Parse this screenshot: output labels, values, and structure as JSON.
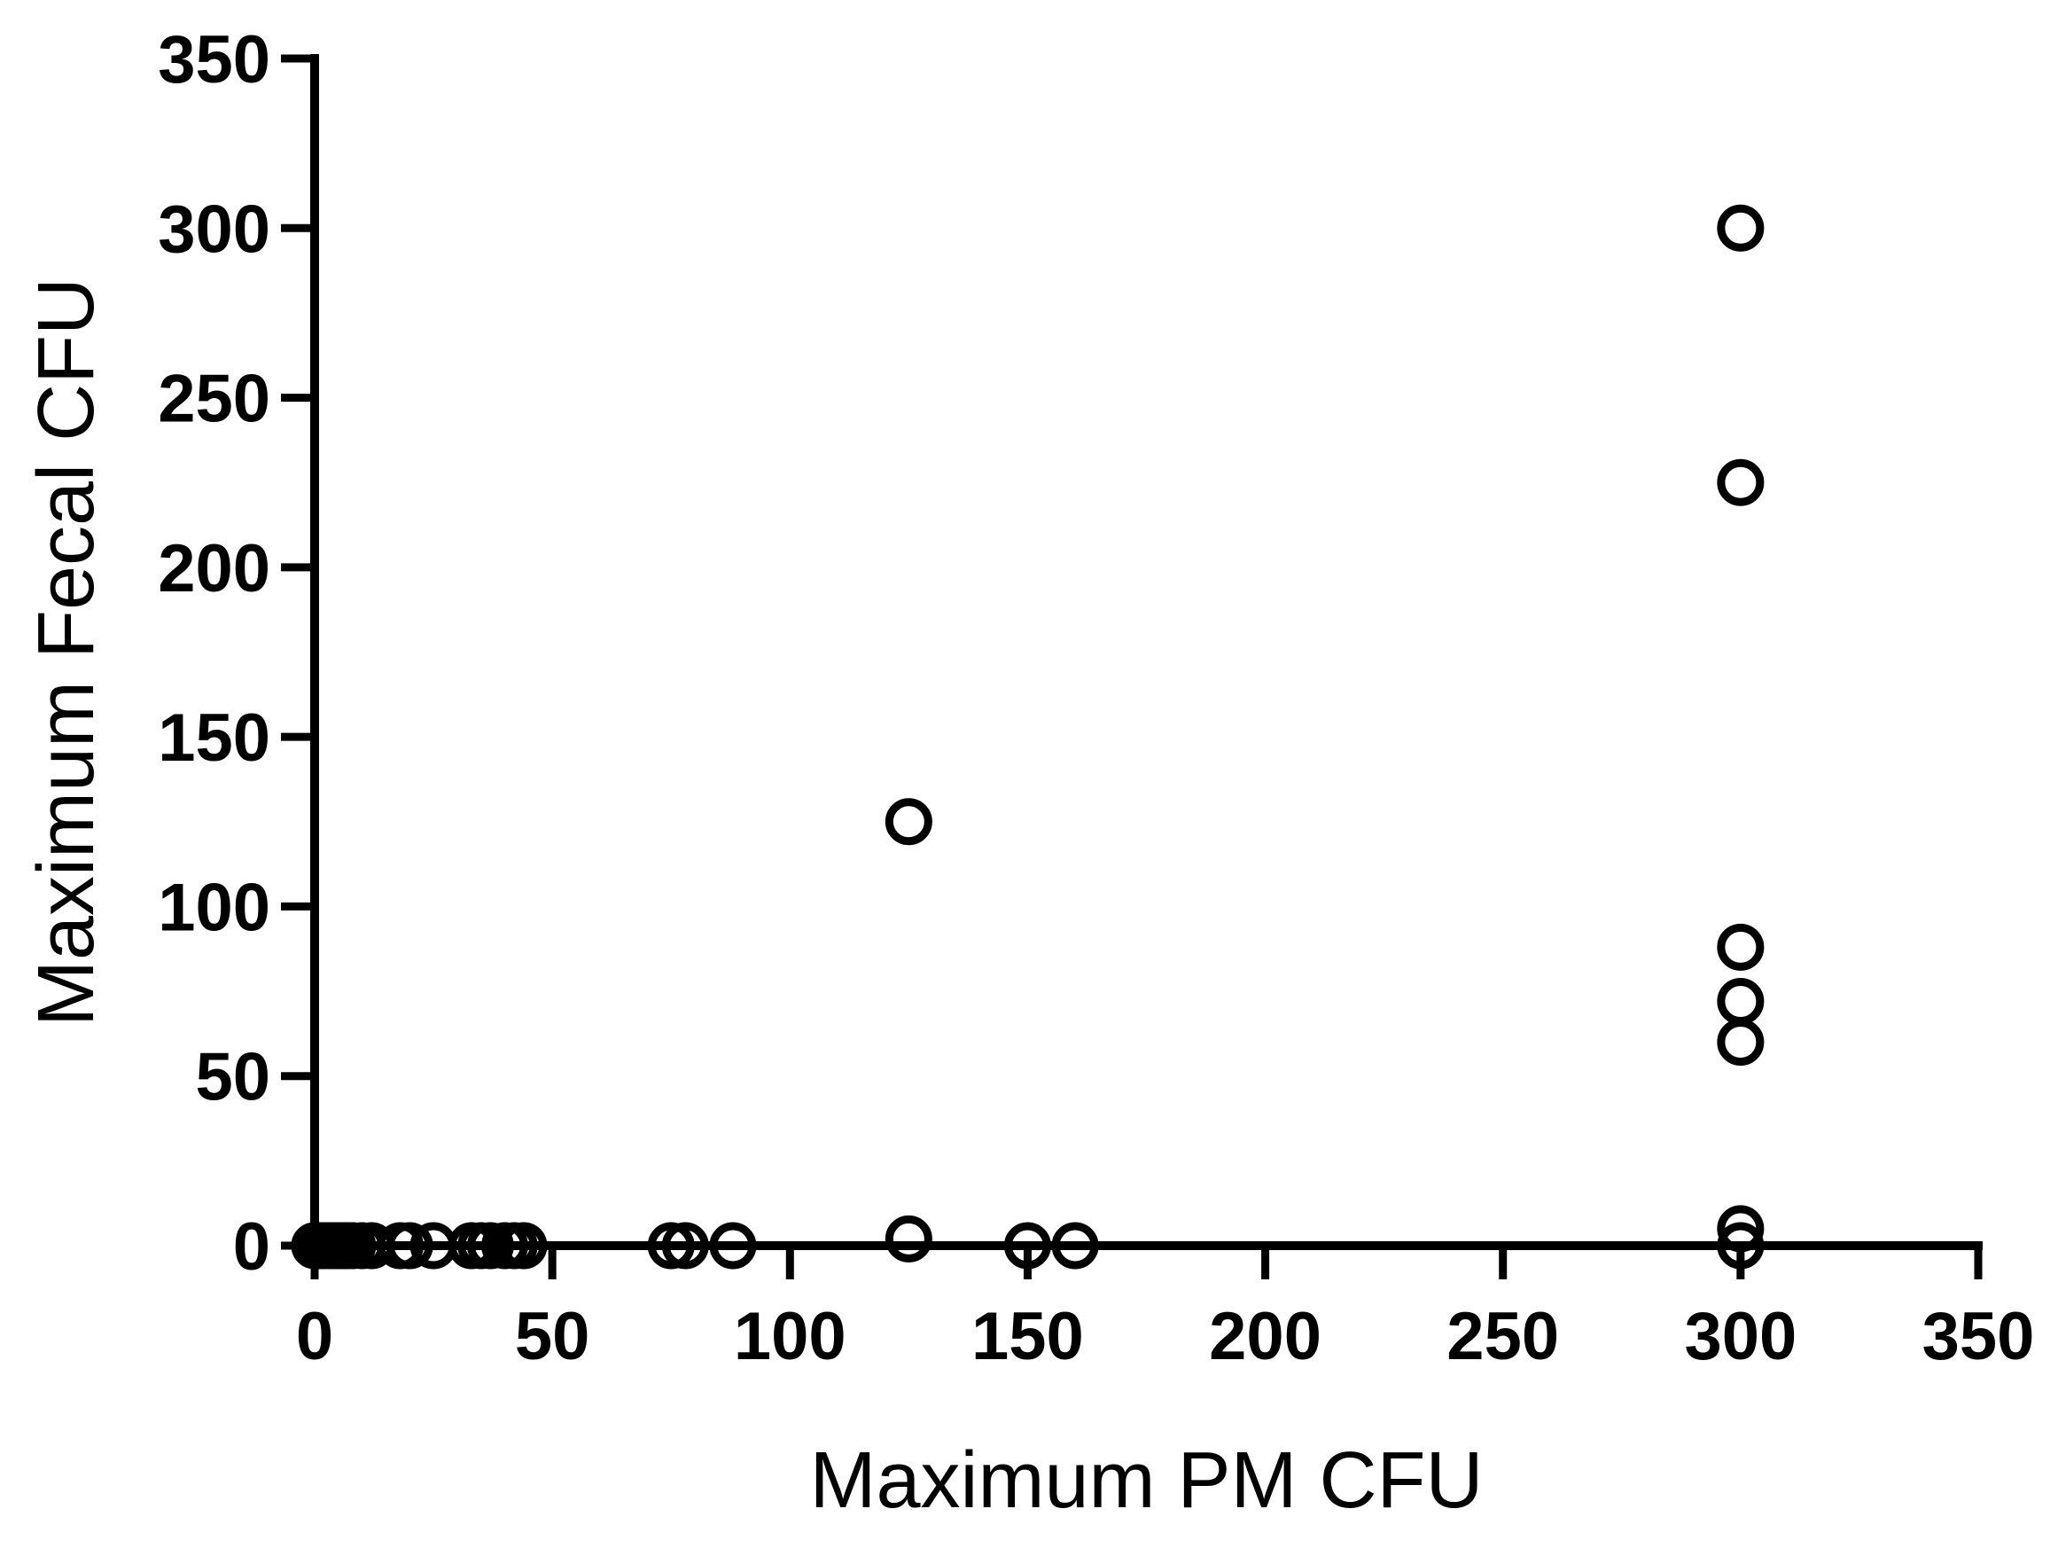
{
  "chart_data": {
    "type": "scatter",
    "title": "",
    "xlabel": "Maximum PM CFU",
    "ylabel": "Maximum Fecal CFU",
    "xlim": [
      0,
      350
    ],
    "ylim": [
      0,
      350
    ],
    "xticks": [
      "0",
      "50",
      "100",
      "150",
      "200",
      "250",
      "300",
      "350"
    ],
    "yticks": [
      "0",
      "50",
      "100",
      "150",
      "200",
      "250",
      "300",
      "350"
    ],
    "grid": false,
    "legend": "none",
    "marker": "open-circle",
    "color": "#000000",
    "series": [
      {
        "x": [
          0,
          1,
          2,
          3,
          4,
          5,
          6,
          7,
          8,
          10,
          12,
          18,
          20,
          25,
          33,
          35,
          37,
          40,
          42,
          44,
          75,
          78,
          88,
          125,
          125,
          150,
          160,
          300,
          300,
          300,
          300,
          300,
          300,
          300
        ],
        "y": [
          0,
          0,
          0,
          0,
          0,
          0,
          0,
          0,
          0,
          0,
          0,
          0,
          0,
          0,
          0,
          0,
          0,
          0,
          0,
          0,
          0,
          0,
          0,
          125,
          2,
          0,
          0,
          300,
          225,
          88,
          72,
          60,
          5,
          0
        ]
      }
    ]
  }
}
